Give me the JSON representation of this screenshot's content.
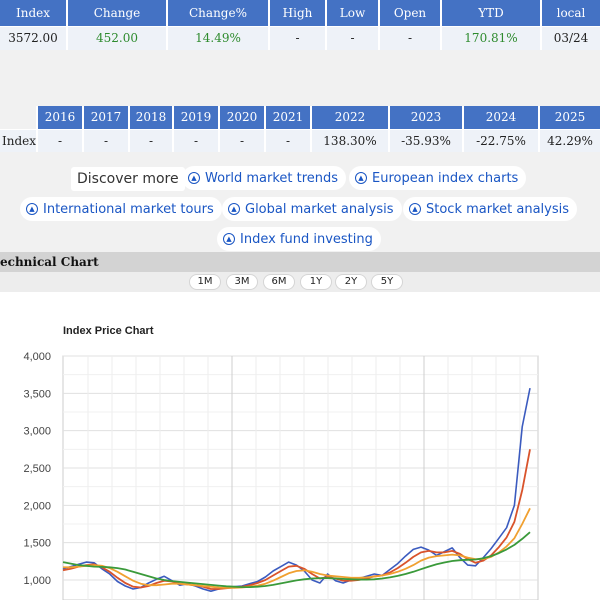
{
  "quote_table": {
    "headers": [
      "Index",
      "Change",
      "Change%",
      "High",
      "Low",
      "Open",
      "YTD",
      "local"
    ],
    "row": {
      "index": "3572.00",
      "change": "452.00",
      "change_pct": "14.49%",
      "high": "-",
      "low": "-",
      "open": "-",
      "ytd": "170.81%",
      "local": "03/24"
    }
  },
  "yearly_table": {
    "years": [
      "2016",
      "2017",
      "2018",
      "2019",
      "2020",
      "2021",
      "2022",
      "2023",
      "2024",
      "2025"
    ],
    "row_label": "Index",
    "values": [
      "-",
      "-",
      "-",
      "-",
      "-",
      "-",
      "138.30%",
      "-35.93%",
      "-22.75%",
      "42.29%"
    ]
  },
  "links": {
    "discover_label": "Discover more",
    "chips": [
      "World market trends",
      "European index charts",
      "International market tours",
      "Global market analysis",
      "Stock market analysis",
      "Index fund investing"
    ]
  },
  "technical_chart": {
    "section_title": "echnical Chart",
    "ranges": [
      "1M",
      "3M",
      "6M",
      "1Y",
      "2Y",
      "5Y"
    ]
  },
  "chart_data": {
    "type": "line",
    "title": "Index Price Chart",
    "xlabel": "",
    "ylabel": "",
    "ylim": [
      900,
      4000
    ],
    "yticks": [
      "4,000",
      "3,500",
      "3,000",
      "2,500",
      "2,000",
      "1,500",
      "1,000"
    ],
    "ytick_values": [
      4000,
      3500,
      3000,
      2500,
      2000,
      1500,
      1000
    ],
    "grid": true,
    "x": [
      0,
      1,
      2,
      3,
      4,
      5,
      6,
      7,
      8,
      9,
      10,
      11,
      12,
      13,
      14,
      15,
      16,
      17,
      18,
      19,
      20,
      21,
      22,
      23,
      24,
      25,
      26,
      27,
      28,
      29,
      30,
      31,
      32,
      33,
      34,
      35,
      36,
      37,
      38,
      39,
      40,
      41,
      42,
      43,
      44,
      45,
      46,
      47,
      48,
      49,
      50,
      51,
      52,
      53,
      54,
      55,
      56,
      57,
      58,
      59,
      60
    ],
    "series": [
      {
        "color": "#3b5bbf",
        "values": [
          1150,
          1180,
          1210,
          1240,
          1230,
          1150,
          1080,
          980,
          920,
          880,
          900,
          960,
          1010,
          1050,
          990,
          930,
          950,
          920,
          880,
          850,
          880,
          900,
          910,
          920,
          950,
          980,
          1040,
          1120,
          1180,
          1240,
          1200,
          1120,
          1000,
          960,
          1080,
          990,
          960,
          1000,
          1020,
          1050,
          1080,
          1060,
          1140,
          1220,
          1320,
          1410,
          1440,
          1400,
          1330,
          1380,
          1430,
          1300,
          1200,
          1190,
          1300,
          1420,
          1560,
          1700,
          2000,
          3050,
          3570
        ]
      },
      {
        "color": "#d9532b",
        "values": [
          1130,
          1150,
          1180,
          1200,
          1210,
          1170,
          1110,
          1030,
          960,
          910,
          900,
          920,
          960,
          990,
          980,
          950,
          940,
          930,
          910,
          880,
          880,
          890,
          900,
          910,
          930,
          960,
          1000,
          1060,
          1120,
          1180,
          1190,
          1150,
          1080,
          1020,
          1040,
          1020,
          990,
          990,
          1000,
          1020,
          1050,
          1060,
          1100,
          1160,
          1230,
          1310,
          1370,
          1390,
          1370,
          1370,
          1390,
          1350,
          1280,
          1230,
          1260,
          1330,
          1440,
          1570,
          1780,
          2200,
          2750
        ]
      },
      {
        "color": "#f0a030",
        "values": [
          1170,
          1170,
          1180,
          1190,
          1200,
          1190,
          1160,
          1110,
          1050,
          990,
          950,
          930,
          930,
          940,
          950,
          950,
          940,
          930,
          920,
          910,
          900,
          895,
          895,
          900,
          910,
          925,
          950,
          990,
          1040,
          1090,
          1120,
          1130,
          1110,
          1080,
          1060,
          1050,
          1040,
          1030,
          1030,
          1035,
          1045,
          1060,
          1080,
          1110,
          1150,
          1200,
          1260,
          1300,
          1320,
          1330,
          1340,
          1330,
          1300,
          1280,
          1280,
          1310,
          1370,
          1450,
          1560,
          1750,
          1960
        ]
      },
      {
        "color": "#3a9a3a",
        "values": [
          1240,
          1220,
          1200,
          1190,
          1180,
          1175,
          1170,
          1160,
          1140,
          1110,
          1080,
          1050,
          1020,
          1000,
          985,
          975,
          965,
          955,
          945,
          935,
          925,
          915,
          910,
          905,
          905,
          910,
          920,
          935,
          955,
          975,
          995,
          1010,
          1020,
          1025,
          1025,
          1020,
          1015,
          1010,
          1005,
          1005,
          1010,
          1020,
          1035,
          1055,
          1080,
          1110,
          1145,
          1180,
          1210,
          1235,
          1255,
          1265,
          1270,
          1275,
          1290,
          1320,
          1360,
          1410,
          1470,
          1550,
          1640
        ]
      }
    ]
  }
}
